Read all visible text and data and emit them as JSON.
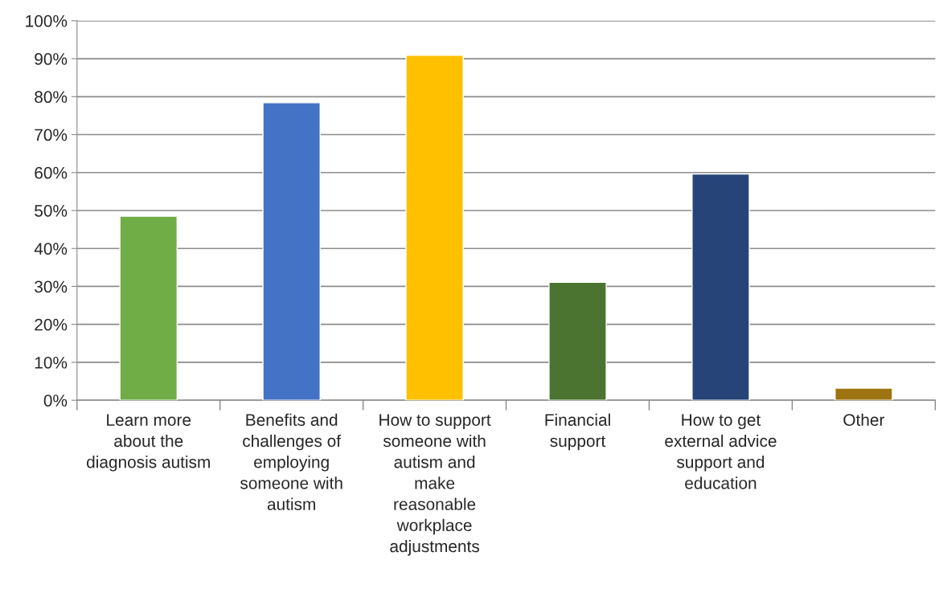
{
  "chart_data": {
    "type": "bar",
    "categories": [
      "Learn more about the diagnosis autism",
      "Benefits and challenges of employing someone with autism",
      "How to support someone with autism and make reasonable workplace adjustments",
      "Financial support",
      "How to get external advice support and education",
      "Other"
    ],
    "values": [
      48.5,
      78.4,
      90.9,
      31.1,
      59.6,
      3.2
    ],
    "colors": [
      "#70ad47",
      "#4472c4",
      "#ffc000",
      "#4a7430",
      "#264478",
      "#9e7311"
    ],
    "ylim": [
      0,
      100
    ],
    "yticks": [
      {
        "value": 0,
        "label": "0%"
      },
      {
        "value": 10,
        "label": "10%"
      },
      {
        "value": 20,
        "label": "20%"
      },
      {
        "value": 30,
        "label": "30%"
      },
      {
        "value": 40,
        "label": "40%"
      },
      {
        "value": 50,
        "label": "50%"
      },
      {
        "value": 60,
        "label": "60%"
      },
      {
        "value": 70,
        "label": "70%"
      },
      {
        "value": 80,
        "label": "80%"
      },
      {
        "value": 90,
        "label": "90%"
      },
      {
        "value": 100,
        "label": "100%"
      }
    ],
    "grid": "y"
  }
}
